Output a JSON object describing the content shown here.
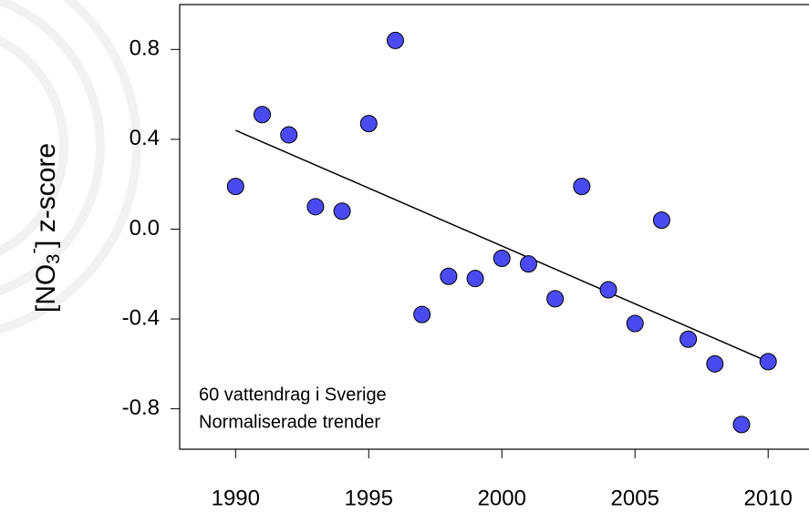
{
  "chart_data": {
    "type": "scatter",
    "ylabel": {
      "before": "[NO",
      "sub": "3",
      "sup": "-",
      "after": "] z-score"
    },
    "annotations": [
      "60 vattendrag i Sverige",
      "Normaliserade trender"
    ],
    "x": [
      1990,
      1991,
      1992,
      1993,
      1994,
      1995,
      1996,
      1997,
      1998,
      1999,
      2000,
      2001,
      2002,
      2003,
      2004,
      2005,
      2006,
      2007,
      2008,
      2009,
      2010
    ],
    "values": [
      0.19,
      0.51,
      0.42,
      0.1,
      0.08,
      0.47,
      0.84,
      -0.38,
      -0.21,
      -0.22,
      -0.13,
      -0.155,
      -0.31,
      0.19,
      -0.27,
      -0.42,
      0.04,
      -0.49,
      -0.6,
      -0.87,
      -0.59
    ],
    "color": "#4a4af0",
    "trend_line": {
      "x": [
        1990,
        2010
      ],
      "values": [
        0.44,
        -0.59
      ]
    },
    "xlim": [
      1987.9,
      2011.5
    ],
    "ylim": [
      -0.98,
      1.0
    ],
    "xticks": [
      1990,
      1995,
      2000,
      2005,
      2010
    ],
    "yticks": [
      0.8,
      0.4,
      {
        "value": 0,
        "label": "0.0"
      },
      -0.4,
      -0.8
    ]
  }
}
